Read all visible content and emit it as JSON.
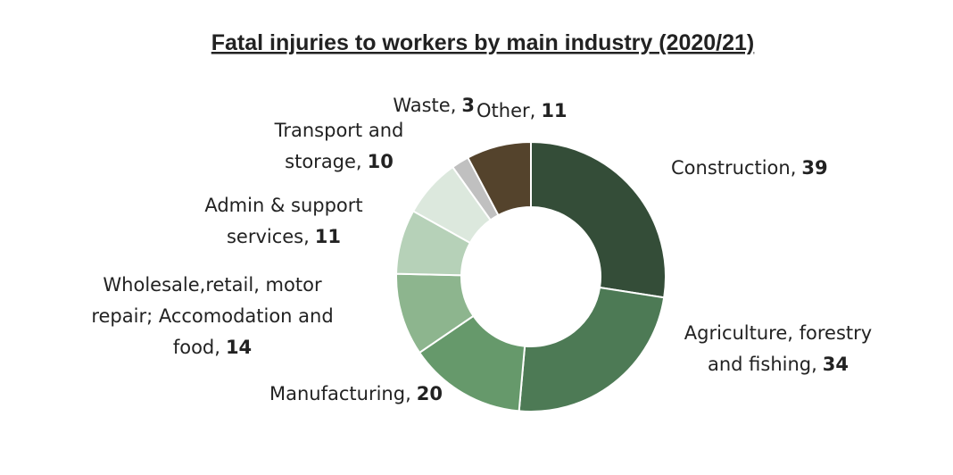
{
  "chart_data": {
    "type": "donut",
    "title": "Fatal injuries to workers by main industry (2020/21)",
    "categories": [
      [
        "Construction,"
      ],
      [
        "Agriculture, forestry",
        "and fishing,"
      ],
      [
        "Manufacturing,"
      ],
      [
        "Wholesale,retail, motor",
        "repair; Accomodation and",
        "food,"
      ],
      [
        "Admin & support",
        "services,"
      ],
      [
        "Transport and",
        "storage,"
      ],
      [
        "Waste,"
      ],
      [
        "Other,"
      ]
    ],
    "values": [
      39,
      34,
      20,
      14,
      11,
      10,
      3,
      11
    ],
    "colors": [
      "#344d38",
      "#4d7a55",
      "#66996b",
      "#8db58e",
      "#b6d1b8",
      "#dce8dd",
      "#c0c0c0",
      "#54432c"
    ]
  }
}
